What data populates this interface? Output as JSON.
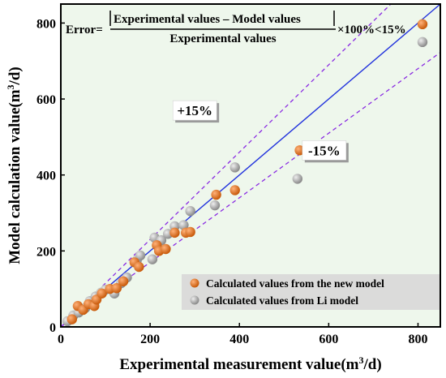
{
  "colors": {
    "plot_background": "#eef7ec",
    "fit_line": "#2233dd",
    "band_lines": "#8a2be2",
    "new_model": "#e07018",
    "li_model": "#a6a6a6",
    "legend_background": "#d9d9d9"
  },
  "chart_data": {
    "type": "scatter",
    "xlabel": "Experimental measurement value(m³/d)",
    "ylabel": "Model calculation value(m³/d)",
    "xlim": [
      0,
      850
    ],
    "ylim": [
      0,
      850
    ],
    "x_ticks": [
      "0",
      "200",
      "400",
      "600",
      "800"
    ],
    "y_ticks": [
      "0",
      "200",
      "400",
      "600",
      "800"
    ],
    "grid": false,
    "legend_position": "bottom-right",
    "formula": {
      "prefix": "Error=",
      "numerator": "Experimental values – Model  values",
      "denominator": "Experimental  values",
      "suffix": "×100%<15%"
    },
    "annotations": [
      {
        "label": "+15%",
        "x": 300,
        "y": 570
      },
      {
        "label": "-15%",
        "x": 590,
        "y": 465
      }
    ],
    "reference_lines": [
      {
        "name": "y=x",
        "slope": 1.0
      },
      {
        "name": "+15%",
        "slope": 1.15
      },
      {
        "name": "-15%",
        "slope": 0.85
      }
    ],
    "series": [
      {
        "name": "Calculated values from the new model",
        "points": [
          [
            25,
            20
          ],
          [
            38,
            55
          ],
          [
            50,
            45
          ],
          [
            62,
            60
          ],
          [
            75,
            55
          ],
          [
            80,
            72
          ],
          [
            92,
            88
          ],
          [
            110,
            100
          ],
          [
            125,
            102
          ],
          [
            140,
            120
          ],
          [
            165,
            170
          ],
          [
            175,
            158
          ],
          [
            215,
            215
          ],
          [
            220,
            200
          ],
          [
            235,
            205
          ],
          [
            255,
            248
          ],
          [
            280,
            248
          ],
          [
            290,
            250
          ],
          [
            348,
            348
          ],
          [
            390,
            360
          ],
          [
            535,
            465
          ],
          [
            810,
            797
          ]
        ]
      },
      {
        "name": "Calculated values from Li model",
        "points": [
          [
            15,
            15
          ],
          [
            28,
            30
          ],
          [
            40,
            38
          ],
          [
            55,
            50
          ],
          [
            65,
            68
          ],
          [
            78,
            80
          ],
          [
            90,
            90
          ],
          [
            100,
            98
          ],
          [
            120,
            88
          ],
          [
            135,
            115
          ],
          [
            148,
            130
          ],
          [
            170,
            175
          ],
          [
            178,
            188
          ],
          [
            205,
            178
          ],
          [
            210,
            235
          ],
          [
            225,
            228
          ],
          [
            240,
            245
          ],
          [
            255,
            265
          ],
          [
            275,
            268
          ],
          [
            290,
            305
          ],
          [
            345,
            320
          ],
          [
            390,
            420
          ],
          [
            530,
            390
          ],
          [
            810,
            750
          ]
        ]
      }
    ]
  }
}
